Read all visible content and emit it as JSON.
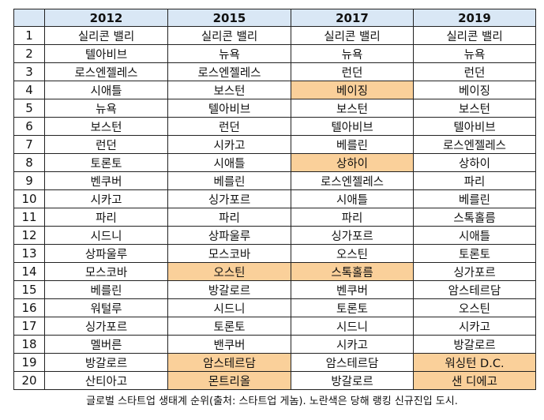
{
  "colors": {
    "header_bg": "#d9e7f5",
    "highlight": "#fad09a"
  },
  "table": {
    "corner": "",
    "years": [
      "2012",
      "2015",
      "2017",
      "2019"
    ],
    "rows": [
      {
        "rank": "1",
        "cells": [
          {
            "city": "실리콘 밸리",
            "new": false
          },
          {
            "city": "실리콘 밸리",
            "new": false
          },
          {
            "city": "실리콘 밸리",
            "new": false
          },
          {
            "city": "실리콘 밸리",
            "new": false
          }
        ]
      },
      {
        "rank": "2",
        "cells": [
          {
            "city": "텔아비브",
            "new": false
          },
          {
            "city": "뉴욕",
            "new": false
          },
          {
            "city": "뉴욕",
            "new": false
          },
          {
            "city": "뉴욕",
            "new": false
          }
        ]
      },
      {
        "rank": "3",
        "cells": [
          {
            "city": "로스엔젤레스",
            "new": false
          },
          {
            "city": "로스엔젤레스",
            "new": false
          },
          {
            "city": "런던",
            "new": false
          },
          {
            "city": "런던",
            "new": false
          }
        ]
      },
      {
        "rank": "4",
        "cells": [
          {
            "city": "시애틀",
            "new": false
          },
          {
            "city": "보스턴",
            "new": false
          },
          {
            "city": "베이징",
            "new": true
          },
          {
            "city": "베이징",
            "new": false
          }
        ]
      },
      {
        "rank": "5",
        "cells": [
          {
            "city": "뉴욕",
            "new": false
          },
          {
            "city": "텔아비브",
            "new": false
          },
          {
            "city": "보스턴",
            "new": false
          },
          {
            "city": "보스턴",
            "new": false
          }
        ]
      },
      {
        "rank": "6",
        "cells": [
          {
            "city": "보스턴",
            "new": false
          },
          {
            "city": "런던",
            "new": false
          },
          {
            "city": "텔아비브",
            "new": false
          },
          {
            "city": "텔아비브",
            "new": false
          }
        ]
      },
      {
        "rank": "7",
        "cells": [
          {
            "city": "런던",
            "new": false
          },
          {
            "city": "시카고",
            "new": false
          },
          {
            "city": "베를린",
            "new": false
          },
          {
            "city": "로스엔젤레스",
            "new": false
          }
        ]
      },
      {
        "rank": "8",
        "cells": [
          {
            "city": "토론토",
            "new": false
          },
          {
            "city": "시애틀",
            "new": false
          },
          {
            "city": "상하이",
            "new": true
          },
          {
            "city": "상하이",
            "new": false
          }
        ]
      },
      {
        "rank": "9",
        "cells": [
          {
            "city": "벤쿠버",
            "new": false
          },
          {
            "city": "베를린",
            "new": false
          },
          {
            "city": "로스엔젤레스",
            "new": false
          },
          {
            "city": "파리",
            "new": false
          }
        ]
      },
      {
        "rank": "10",
        "cells": [
          {
            "city": "시카고",
            "new": false
          },
          {
            "city": "싱가포르",
            "new": false
          },
          {
            "city": "시애틀",
            "new": false
          },
          {
            "city": "베를린",
            "new": false
          }
        ]
      },
      {
        "rank": "11",
        "cells": [
          {
            "city": "파리",
            "new": false
          },
          {
            "city": "파리",
            "new": false
          },
          {
            "city": "파리",
            "new": false
          },
          {
            "city": "스톡홀름",
            "new": false
          }
        ]
      },
      {
        "rank": "12",
        "cells": [
          {
            "city": "시드니",
            "new": false
          },
          {
            "city": "상파울루",
            "new": false
          },
          {
            "city": "싱가포르",
            "new": false
          },
          {
            "city": "시애틀",
            "new": false
          }
        ]
      },
      {
        "rank": "13",
        "cells": [
          {
            "city": "상파울루",
            "new": false
          },
          {
            "city": "모스코바",
            "new": false
          },
          {
            "city": "오스틴",
            "new": false
          },
          {
            "city": "토론토",
            "new": false
          }
        ]
      },
      {
        "rank": "14",
        "cells": [
          {
            "city": "모스코바",
            "new": false
          },
          {
            "city": "오스틴",
            "new": true
          },
          {
            "city": "스톡홀름",
            "new": true
          },
          {
            "city": "싱가포르",
            "new": false
          }
        ]
      },
      {
        "rank": "15",
        "cells": [
          {
            "city": "베를린",
            "new": false
          },
          {
            "city": "방갈로르",
            "new": false
          },
          {
            "city": "벤쿠버",
            "new": false
          },
          {
            "city": "암스테르담",
            "new": false
          }
        ]
      },
      {
        "rank": "16",
        "cells": [
          {
            "city": "워털루",
            "new": false
          },
          {
            "city": "시드니",
            "new": false
          },
          {
            "city": "토론토",
            "new": false
          },
          {
            "city": "오스틴",
            "new": false
          }
        ]
      },
      {
        "rank": "17",
        "cells": [
          {
            "city": "싱가포르",
            "new": false
          },
          {
            "city": "토론토",
            "new": false
          },
          {
            "city": "시드니",
            "new": false
          },
          {
            "city": "시카고",
            "new": false
          }
        ]
      },
      {
        "rank": "18",
        "cells": [
          {
            "city": "멜버른",
            "new": false
          },
          {
            "city": "밴쿠버",
            "new": false
          },
          {
            "city": "시카고",
            "new": false
          },
          {
            "city": "방갈로르",
            "new": false
          }
        ]
      },
      {
        "rank": "19",
        "cells": [
          {
            "city": "방갈로르",
            "new": false
          },
          {
            "city": "암스테르담",
            "new": true
          },
          {
            "city": "암스테르담",
            "new": false
          },
          {
            "city": "워싱턴 D.C.",
            "new": true
          }
        ]
      },
      {
        "rank": "20",
        "cells": [
          {
            "city": "산티아고",
            "new": false
          },
          {
            "city": "몬트리올",
            "new": true
          },
          {
            "city": "방갈로르",
            "new": false
          },
          {
            "city": "샌 디에고",
            "new": true
          }
        ]
      }
    ]
  },
  "caption": "글로벌 스타트업 생태계 순위(출처: 스타트업 게놈). 노란색은 당해 랭킹 신규진입 도시."
}
